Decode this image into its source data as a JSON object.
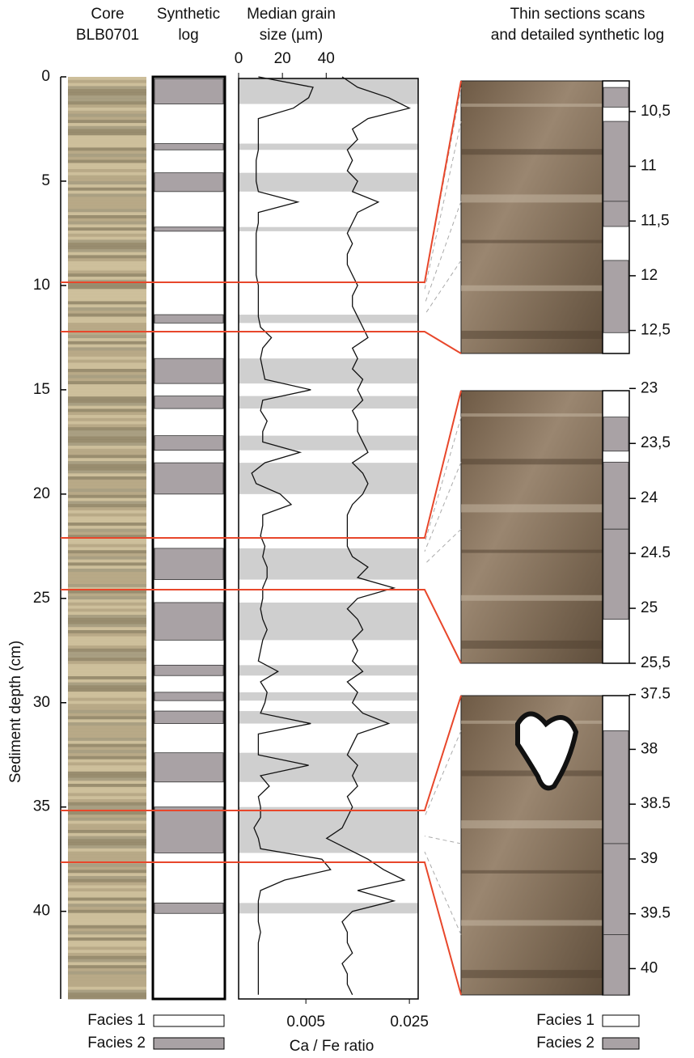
{
  "headers": {
    "core": [
      "Core",
      "BLB0701"
    ],
    "synthetic": [
      "Synthetic",
      "log"
    ],
    "grain": [
      "Median grain",
      "size (µm)"
    ],
    "thin": [
      "Thin sections scans",
      "and detailed synthetic log"
    ]
  },
  "depth_axis": {
    "label": "Sediment depth (cm)",
    "lim": [
      0,
      44.2
    ],
    "ticks": [
      0,
      5,
      10,
      15,
      20,
      25,
      30,
      35,
      40
    ]
  },
  "grain_axis": {
    "lim": [
      0,
      82
    ],
    "ticks": [
      0,
      20,
      40
    ]
  },
  "ca_fe_axis": {
    "label": "Ca / Fe ratio",
    "lim": [
      -0.008,
      0.0267
    ],
    "ticks": [
      0.005,
      0.025
    ]
  },
  "synthetic_log": {
    "facies_2": [
      [
        0.1,
        1.3
      ],
      [
        3.2,
        3.5
      ],
      [
        4.6,
        5.5
      ],
      [
        7.2,
        7.4
      ],
      [
        11.4,
        11.8
      ],
      [
        13.5,
        14.7
      ],
      [
        15.3,
        15.9
      ],
      [
        17.2,
        17.9
      ],
      [
        18.5,
        20.0
      ],
      [
        22.6,
        24.1
      ],
      [
        25.2,
        27.0
      ],
      [
        28.2,
        28.7
      ],
      [
        29.5,
        29.9
      ],
      [
        30.4,
        31.0
      ],
      [
        32.4,
        33.8
      ],
      [
        35.0,
        37.2
      ],
      [
        39.6,
        40.1
      ]
    ]
  },
  "profiles": {
    "depth": [
      0,
      0.5,
      1,
      1.5,
      2,
      2.5,
      3,
      3.5,
      4,
      4.5,
      5,
      5.5,
      6,
      6.5,
      7,
      7.5,
      8,
      8.5,
      9,
      9.5,
      10,
      10.5,
      11,
      11.5,
      12,
      12.5,
      13,
      13.5,
      14,
      14.5,
      15,
      15.5,
      16,
      16.5,
      17,
      17.5,
      18,
      18.5,
      19,
      19.5,
      20,
      20.5,
      21,
      21.5,
      22,
      22.5,
      23,
      23.5,
      24,
      24.5,
      25,
      25.5,
      26,
      26.5,
      27,
      27.5,
      28,
      28.5,
      29,
      29.5,
      30,
      30.5,
      31,
      31.5,
      32,
      32.5,
      33,
      33.5,
      34,
      34.5,
      35,
      35.5,
      36,
      36.5,
      37,
      37.5,
      38,
      38.5,
      39,
      39.5,
      40,
      40.5,
      41,
      41.5,
      42,
      42.5,
      43,
      43.5,
      44
    ],
    "grain_size": [
      9,
      34,
      32,
      25,
      9,
      9,
      9,
      9,
      8,
      8,
      8,
      9,
      27,
      9,
      9,
      8,
      8,
      8,
      8,
      8,
      9,
      9,
      9,
      9,
      10,
      15,
      11,
      10,
      11,
      12,
      33,
      11,
      10,
      13,
      11,
      11,
      28,
      12,
      6,
      8,
      19,
      24,
      11,
      11,
      10,
      12,
      11,
      13,
      13,
      11,
      11,
      10,
      11,
      13,
      11,
      10,
      9,
      18,
      10,
      13,
      12,
      10,
      33,
      9,
      9,
      9,
      32,
      10,
      14,
      9,
      10,
      10,
      7,
      9,
      10,
      38,
      42,
      21,
      10,
      9,
      9,
      9,
      10,
      9,
      9,
      9,
      9,
      9,
      9
    ],
    "ca_fe": [
      0.012,
      0.015,
      0.021,
      0.025,
      0.017,
      0.014,
      0.015,
      0.013,
      0.014,
      0.013,
      0.015,
      0.014,
      0.019,
      0.015,
      0.014,
      0.013,
      0.014,
      0.013,
      0.013,
      0.014,
      0.015,
      0.014,
      0.014,
      0.015,
      0.016,
      0.017,
      0.014,
      0.015,
      0.014,
      0.016,
      0.015,
      0.016,
      0.014,
      0.015,
      0.015,
      0.016,
      0.017,
      0.014,
      0.016,
      0.017,
      0.016,
      0.014,
      0.013,
      0.013,
      0.013,
      0.013,
      0.014,
      0.017,
      0.015,
      0.022,
      0.015,
      0.013,
      0.015,
      0.016,
      0.014,
      0.015,
      0.014,
      0.016,
      0.013,
      0.015,
      0.014,
      0.016,
      0.021,
      0.015,
      0.014,
      0.013,
      0.015,
      0.014,
      0.015,
      0.013,
      0.014,
      0.013,
      0.012,
      0.009,
      0.013,
      0.017,
      0.02,
      0.024,
      0.015,
      0.022,
      0.014,
      0.012,
      0.013,
      0.013,
      0.014,
      0.012,
      0.013,
      0.013,
      0.014
    ]
  },
  "thin_sections": [
    {
      "lim": [
        10.22,
        12.71
      ],
      "ticks": [
        {
          "value": 10.5,
          "label": "10,5"
        },
        11,
        {
          "value": 11.5,
          "label": "11,5"
        },
        12,
        {
          "value": 12.5,
          "label": "12,5"
        }
      ],
      "facies_2": [
        [
          10.28,
          10.46
        ],
        [
          10.59,
          11.32
        ],
        [
          11.32,
          11.55
        ],
        [
          11.86,
          12.52
        ]
      ]
    },
    {
      "lim": [
        23.02,
        25.5
      ],
      "ticks": [
        23,
        {
          "value": 23.5,
          "label": "23,5"
        },
        24,
        24.5,
        25,
        {
          "value": 25.5,
          "label": "25,5"
        }
      ],
      "facies_2": [
        [
          23.26,
          23.57
        ],
        [
          23.67,
          24.28
        ],
        [
          24.28,
          25.1
        ]
      ]
    },
    {
      "lim": [
        37.51,
        40.24
      ],
      "ticks": [
        37.5,
        38,
        38.5,
        39,
        39.5,
        40
      ],
      "facies_2": [
        [
          37.83,
          38.86
        ],
        [
          38.86,
          39.69
        ],
        [
          39.69,
          40.24
        ]
      ]
    }
  ],
  "legend": [
    "Facies 1",
    "Facies 2"
  ]
}
